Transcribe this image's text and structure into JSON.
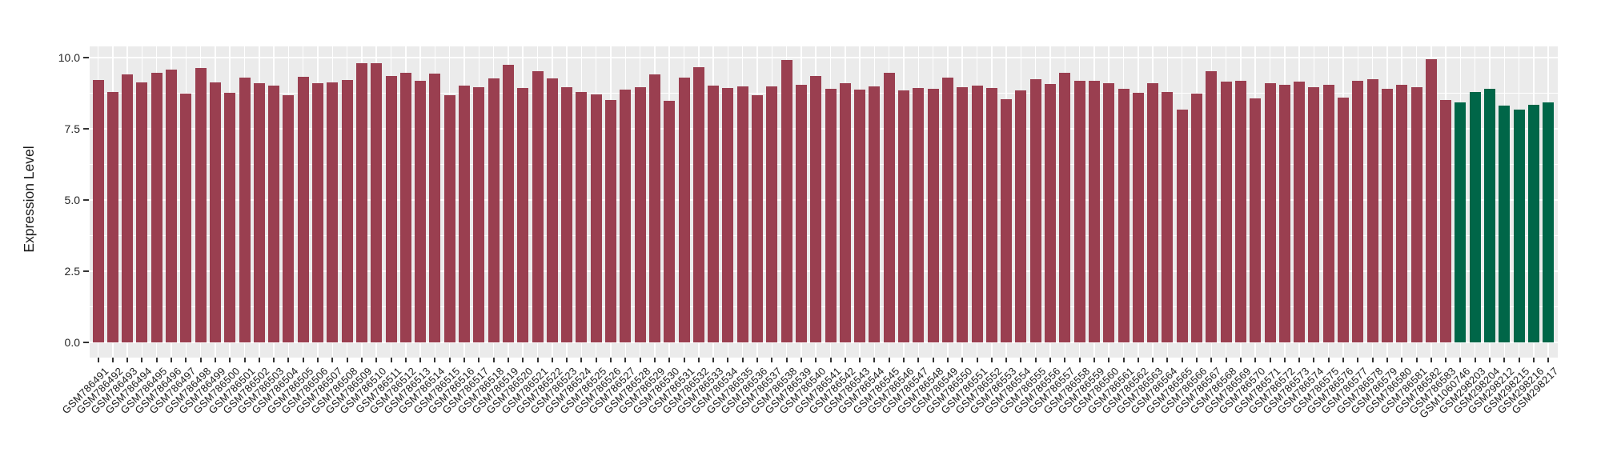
{
  "chart_data": {
    "type": "bar",
    "title": "",
    "xlabel": "",
    "ylabel": "Expression Level",
    "ylim": [
      -0.5,
      10.45
    ],
    "yticks": [
      0.0,
      2.5,
      5.0,
      7.5,
      10.0
    ],
    "ytick_labels": [
      "0.0",
      "2.5",
      "5.0",
      "7.5",
      "10.0"
    ],
    "yticks_minor": [
      1.25,
      3.75,
      6.25,
      8.75
    ],
    "grid": true,
    "legend": "none",
    "x_label_angle": 45,
    "colors": {
      "group_main": "#9A3F50",
      "group_highlight": "#006648",
      "panel_background": "#EBEBEB",
      "gridline": "#FFFFFF",
      "tick": "#333333",
      "text": "#1A1A1A"
    },
    "bars": {
      "highlight_from_index": 93,
      "categories": [
        "GSM786491",
        "GSM786492",
        "GSM786493",
        "GSM786494",
        "GSM786495",
        "GSM786496",
        "GSM786497",
        "GSM786498",
        "GSM786499",
        "GSM786500",
        "GSM786501",
        "GSM786502",
        "GSM786503",
        "GSM786504",
        "GSM786505",
        "GSM786506",
        "GSM786507",
        "GSM786508",
        "GSM786509",
        "GSM786510",
        "GSM786511",
        "GSM786512",
        "GSM786513",
        "GSM786514",
        "GSM786515",
        "GSM786516",
        "GSM786517",
        "GSM786518",
        "GSM786519",
        "GSM786520",
        "GSM786521",
        "GSM786522",
        "GSM786523",
        "GSM786524",
        "GSM786525",
        "GSM786526",
        "GSM786527",
        "GSM786528",
        "GSM786529",
        "GSM786530",
        "GSM786531",
        "GSM786532",
        "GSM786533",
        "GSM786534",
        "GSM786535",
        "GSM786536",
        "GSM786537",
        "GSM786538",
        "GSM786539",
        "GSM786540",
        "GSM786541",
        "GSM786542",
        "GSM786543",
        "GSM786544",
        "GSM786545",
        "GSM786546",
        "GSM786547",
        "GSM786548",
        "GSM786549",
        "GSM786550",
        "GSM786551",
        "GSM786552",
        "GSM786553",
        "GSM786554",
        "GSM786555",
        "GSM786556",
        "GSM786557",
        "GSM786558",
        "GSM786559",
        "GSM786560",
        "GSM786561",
        "GSM786562",
        "GSM786563",
        "GSM786564",
        "GSM786565",
        "GSM786566",
        "GSM786567",
        "GSM786568",
        "GSM786569",
        "GSM786570",
        "GSM786571",
        "GSM786572",
        "GSM786573",
        "GSM786574",
        "GSM786575",
        "GSM786576",
        "GSM786577",
        "GSM786578",
        "GSM786579",
        "GSM786580",
        "GSM786581",
        "GSM786582",
        "GSM786583",
        "GSM1060746",
        "GSM298203",
        "GSM298204",
        "GSM298212",
        "GSM298215",
        "GSM298216",
        "GSM298217"
      ],
      "values": [
        9.22,
        8.8,
        9.43,
        9.13,
        9.47,
        9.6,
        8.74,
        9.65,
        9.13,
        8.77,
        9.31,
        9.1,
        9.02,
        8.69,
        9.33,
        9.1,
        9.15,
        9.22,
        9.81,
        9.8,
        9.36,
        9.48,
        9.2,
        9.45,
        8.69,
        9.03,
        8.96,
        9.29,
        9.76,
        8.94,
        9.53,
        9.28,
        8.97,
        8.8,
        8.71,
        8.51,
        8.89,
        8.98,
        9.41,
        8.49,
        9.31,
        9.68,
        9.03,
        8.94,
        9.01,
        8.68,
        9.01,
        9.92,
        9.06,
        9.36,
        8.91,
        9.11,
        8.89,
        8.99,
        9.47,
        8.87,
        8.93,
        8.91,
        9.32,
        8.96,
        9.03,
        8.94,
        8.55,
        8.86,
        9.24,
        9.08,
        9.47,
        9.19,
        9.18,
        9.12,
        8.9,
        8.78,
        9.1,
        8.81,
        8.17,
        8.74,
        9.53,
        9.16,
        9.18,
        8.57,
        9.11,
        9.04,
        9.17,
        8.96,
        9.04,
        8.6,
        9.18,
        9.25,
        8.9,
        9.05,
        8.96,
        9.95,
        8.52,
        8.43,
        8.8,
        8.91,
        8.32,
        8.19,
        8.35,
        8.44
      ]
    }
  }
}
